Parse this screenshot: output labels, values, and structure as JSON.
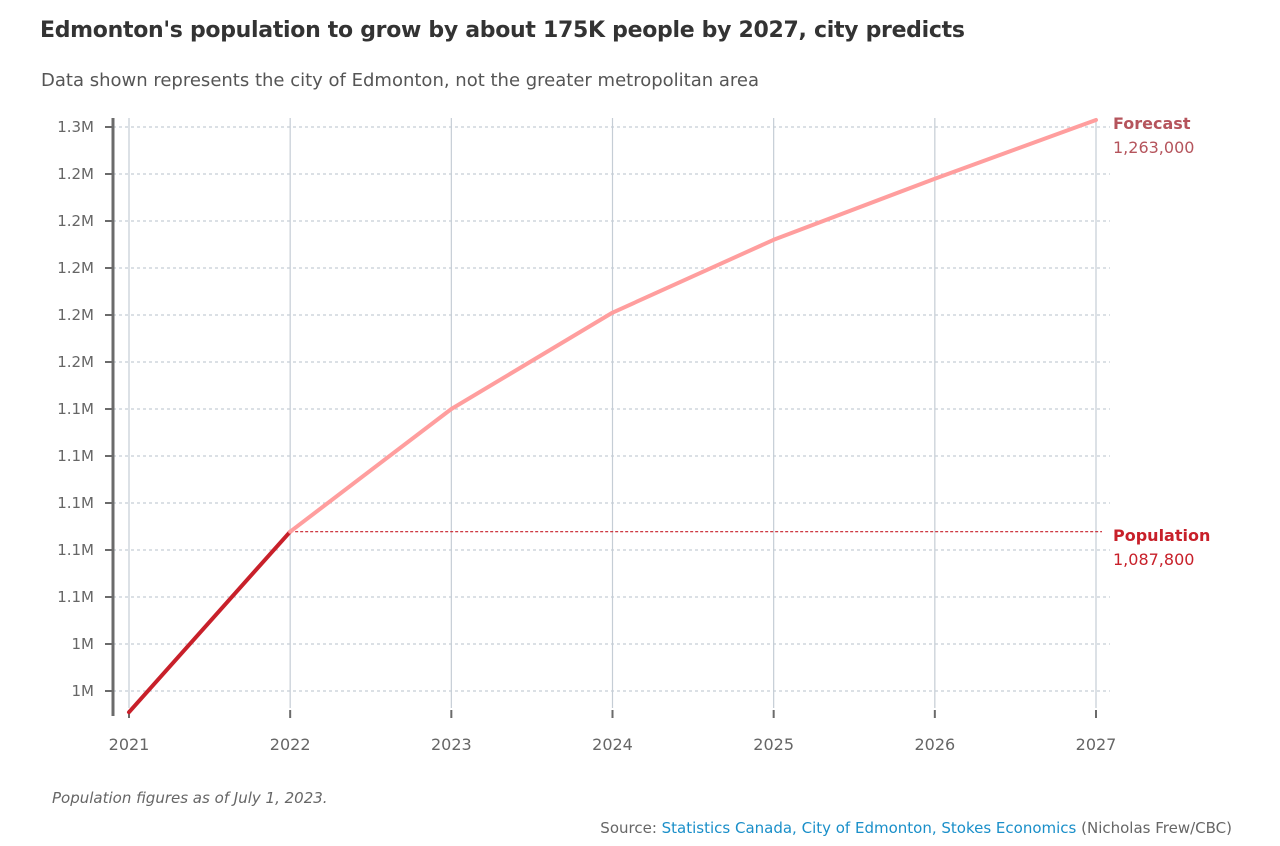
{
  "header": {
    "title": "Edmonton's population to grow by about 175K people by 2027, city predicts",
    "subtitle": "Data shown represents the city of Edmonton, not the greater metropolitan area"
  },
  "footer": {
    "note": "Population figures as of July 1, 2023.",
    "source_prefix": "Source: ",
    "source_links": "Statistics Canada, City of Edmonton, Stokes Economics",
    "credit": " (Nicholas Frew/CBC)"
  },
  "colors": {
    "actual": "#c8202a",
    "forecast": "#ff9e9e",
    "forecast_label": "#b5545c",
    "population_label": "#c8202a",
    "grid": "#c5cdd5",
    "axis": "#6b6b6b",
    "link": "#1a8fc9"
  },
  "chart_data": {
    "type": "line",
    "title": "Edmonton's population to grow by about 175K people by 2027, city predicts",
    "subtitle": "Data shown represents the city of Edmonton, not the greater metropolitan area",
    "xlabel": "",
    "ylabel": "",
    "x": [
      2021,
      2022,
      2023,
      2024,
      2025,
      2026,
      2027
    ],
    "x_tick_labels": [
      "2021",
      "2022",
      "2023",
      "2024",
      "2025",
      "2026",
      "2027"
    ],
    "ylim": [
      1008000,
      1262000
    ],
    "y_ticks": [
      1260000,
      1240000,
      1220000,
      1200000,
      1180000,
      1160000,
      1140000,
      1120000,
      1100000,
      1080000,
      1060000,
      1040000,
      1020000
    ],
    "y_tick_labels": [
      "1.3M",
      "1.2M",
      "1.2M",
      "1.2M",
      "1.2M",
      "1.2M",
      "1.1M",
      "1.1M",
      "1.1M",
      "1.1M",
      "1.1M",
      "1M",
      "1M"
    ],
    "grid": true,
    "series": [
      {
        "name": "Population",
        "style": "solid-dark",
        "x": [
          2021,
          2022
        ],
        "values": [
          1011000,
          1087800
        ]
      },
      {
        "name": "Forecast",
        "style": "solid-light",
        "x": [
          2022,
          2023,
          2024,
          2025,
          2026,
          2027
        ],
        "values": [
          1087800,
          1140000,
          1181000,
          1212000,
          1238000,
          1263000
        ]
      }
    ],
    "annotations": [
      {
        "label": "Forecast",
        "value_text": "1,263,000",
        "x": 2027,
        "y": 1263000,
        "series": "Forecast"
      },
      {
        "label": "Population",
        "value_text": "1,087,800",
        "x": 2022,
        "y": 1087800,
        "series": "Population",
        "reference_line": "dotted"
      }
    ]
  }
}
